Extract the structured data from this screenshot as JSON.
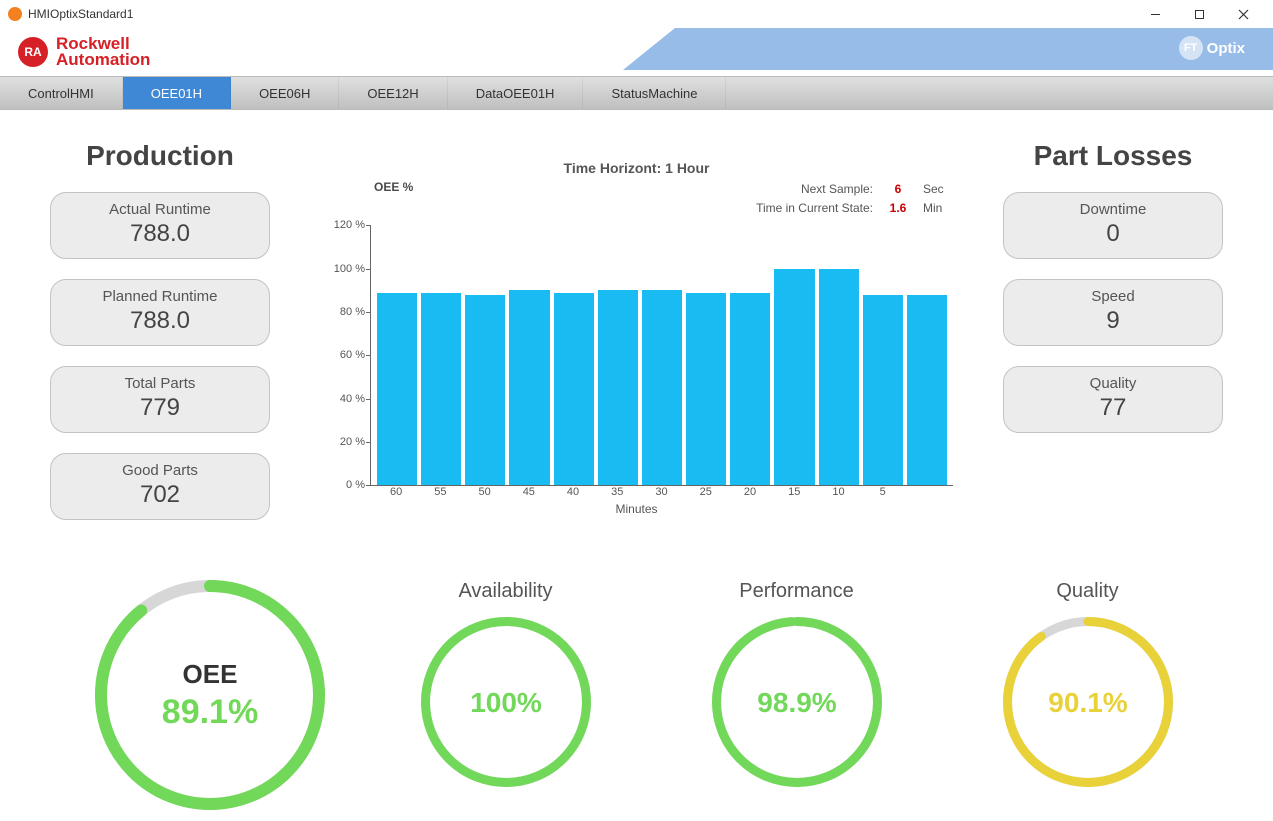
{
  "window": {
    "title": "HMIOptixStandard1"
  },
  "brand": {
    "badge_text": "RA",
    "line1": "Rockwell",
    "line2": "Automation",
    "optix_prefix": "FT",
    "optix_label": "Optix",
    "brand_color": "#d62027",
    "header_shape_color": "#96bce7"
  },
  "tabs": {
    "items": [
      {
        "label": "ControlHMI",
        "active": false
      },
      {
        "label": "OEE01H",
        "active": true
      },
      {
        "label": "OEE06H",
        "active": false
      },
      {
        "label": "OEE12H",
        "active": false
      },
      {
        "label": "DataOEE01H",
        "active": false
      },
      {
        "label": "StatusMachine",
        "active": false
      }
    ]
  },
  "production": {
    "title": "Production",
    "cards": [
      {
        "label": "Actual Runtime",
        "value": "788.0"
      },
      {
        "label": "Planned Runtime",
        "value": "788.0"
      },
      {
        "label": "Total Parts",
        "value": "779"
      },
      {
        "label": "Good Parts",
        "value": "702"
      }
    ]
  },
  "partlosses": {
    "title": "Part Losses",
    "cards": [
      {
        "label": "Downtime",
        "value": "0"
      },
      {
        "label": "Speed",
        "value": "9"
      },
      {
        "label": "Quality",
        "value": "77"
      }
    ]
  },
  "chart": {
    "title": "Time Horizont: 1 Hour",
    "ylabel": "OEE %",
    "next_sample_label": "Next Sample:",
    "next_sample_value": "6",
    "next_sample_unit": "Sec",
    "current_state_label": "Time in Current State:",
    "current_state_value": "1.6",
    "current_state_unit": "Min",
    "ylim_max": 120,
    "ytick_step": 20,
    "yticks": [
      "120 %",
      "100 %",
      "80 %",
      "60 %",
      "40 %",
      "20 %",
      "0 %"
    ],
    "xticks": [
      "60",
      "55",
      "50",
      "45",
      "40",
      "35",
      "30",
      "25",
      "20",
      "15",
      "10",
      "5"
    ],
    "xlabel": "Minutes",
    "values": [
      89,
      89,
      88,
      90,
      89,
      90,
      90,
      89,
      89,
      100,
      100,
      88,
      88
    ],
    "bar_color": "#18bcf2",
    "value_color": "#cc0000",
    "axis_color": "#666666"
  },
  "gauges": {
    "oee": {
      "label": "OEE",
      "value": 89.1,
      "display": "89.1%",
      "color": "#72d859",
      "big": true
    },
    "availability": {
      "label": "Availability",
      "value": 100,
      "display": "100%",
      "color": "#72d859"
    },
    "performance": {
      "label": "Performance",
      "value": 98.9,
      "display": "98.9%",
      "color": "#72d859"
    },
    "quality": {
      "label": "Quality",
      "value": 90.1,
      "display": "90.1%",
      "color": "#e9d13a"
    }
  }
}
